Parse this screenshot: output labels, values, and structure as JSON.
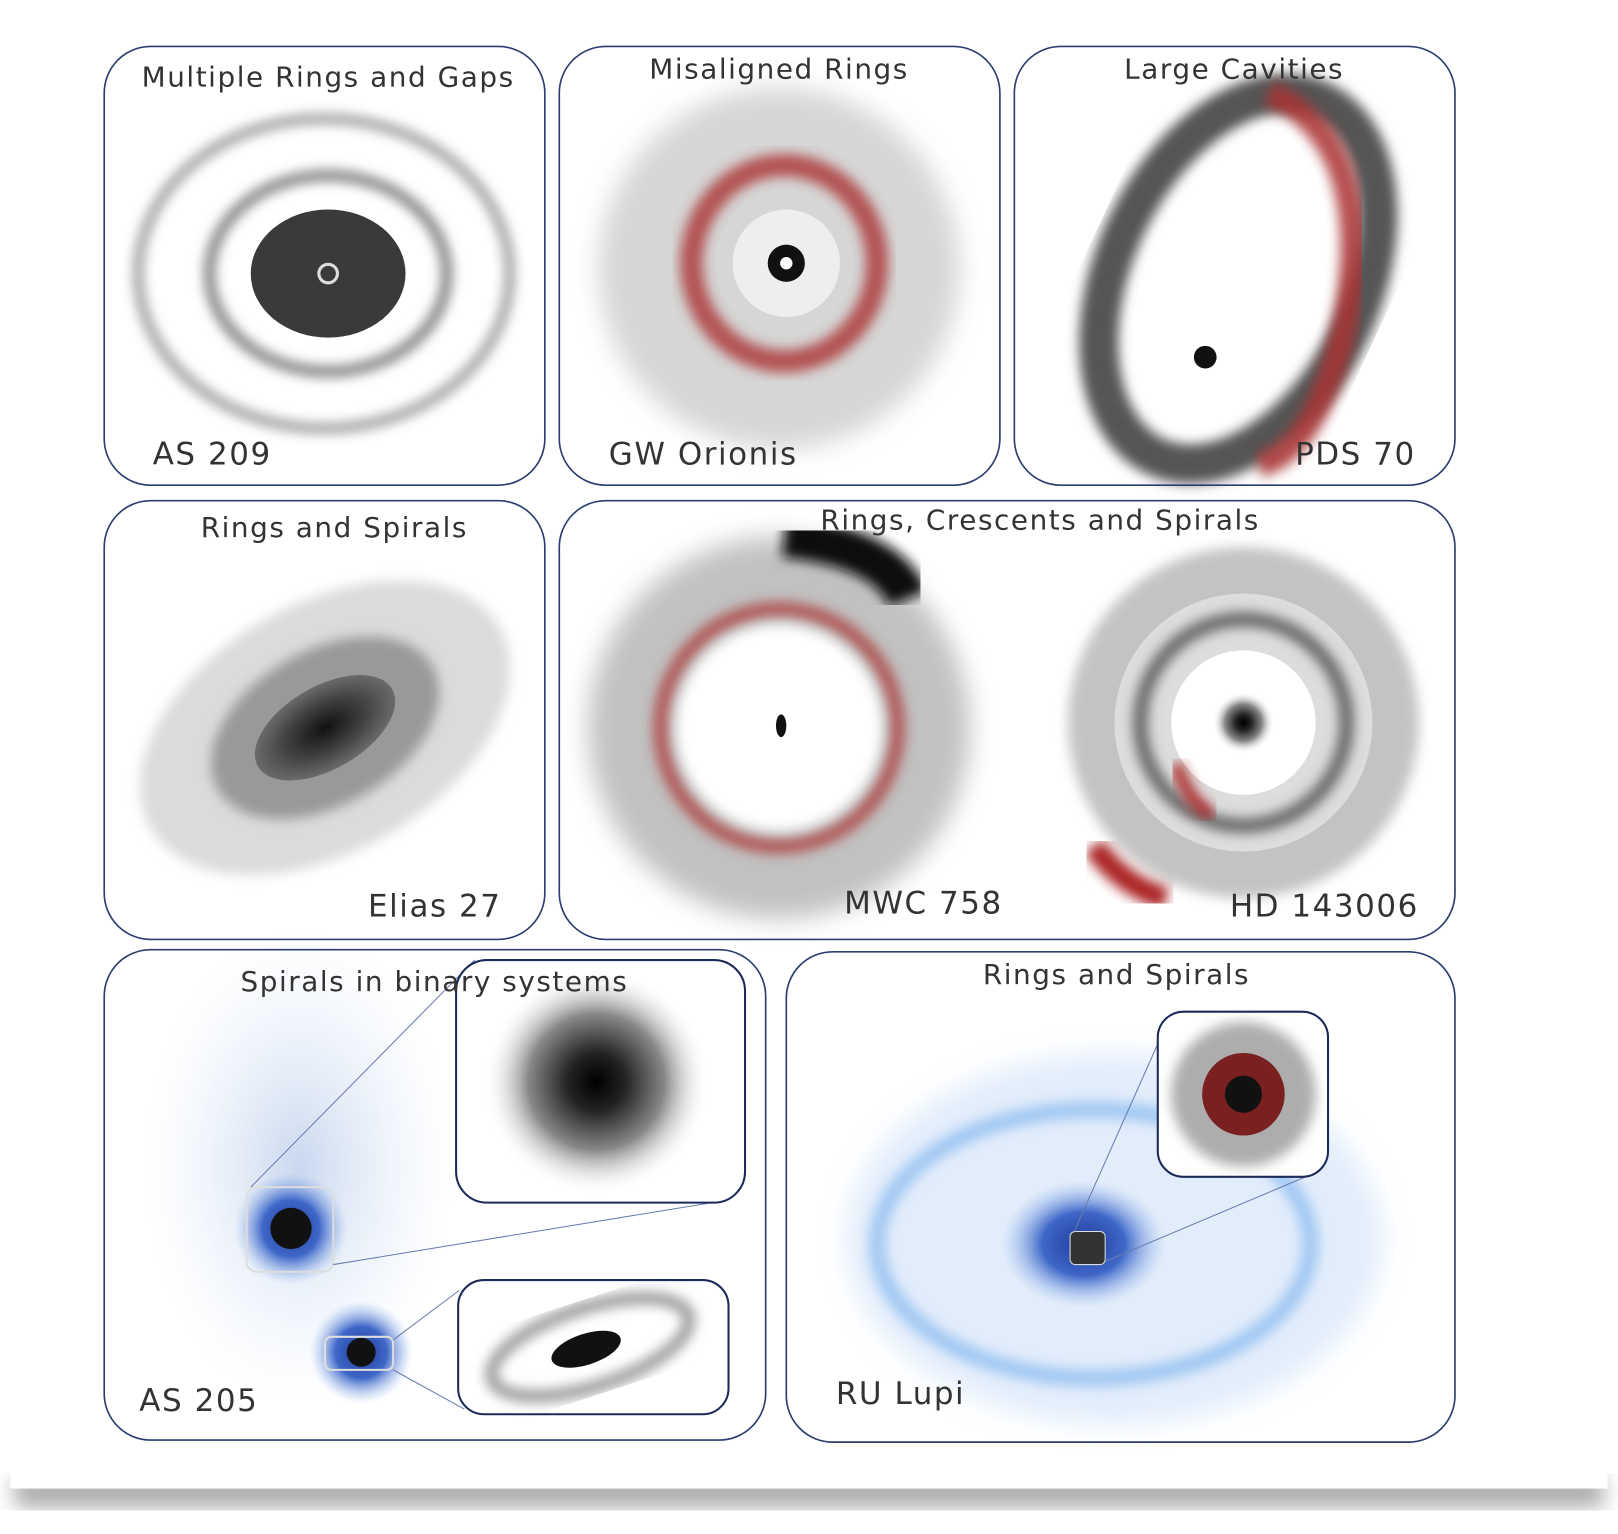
{
  "panels": [
    {
      "title": "Multiple Rings and Gaps",
      "labels": [
        "AS 209"
      ]
    },
    {
      "title": "Misaligned Rings",
      "labels": [
        "GW Orionis"
      ]
    },
    {
      "title": "Large Cavities",
      "labels": [
        "PDS 70"
      ]
    },
    {
      "title": "Rings and Spirals",
      "labels": [
        "Elias 27"
      ]
    },
    {
      "title": "Rings, Crescents and Spirals",
      "labels": [
        "MWC 758",
        "HD 143006"
      ]
    },
    {
      "title": "Spirals in binary systems",
      "labels": [
        "AS 205"
      ]
    },
    {
      "title": "Rings and Spirals",
      "labels": [
        "RU Lupi"
      ]
    }
  ]
}
